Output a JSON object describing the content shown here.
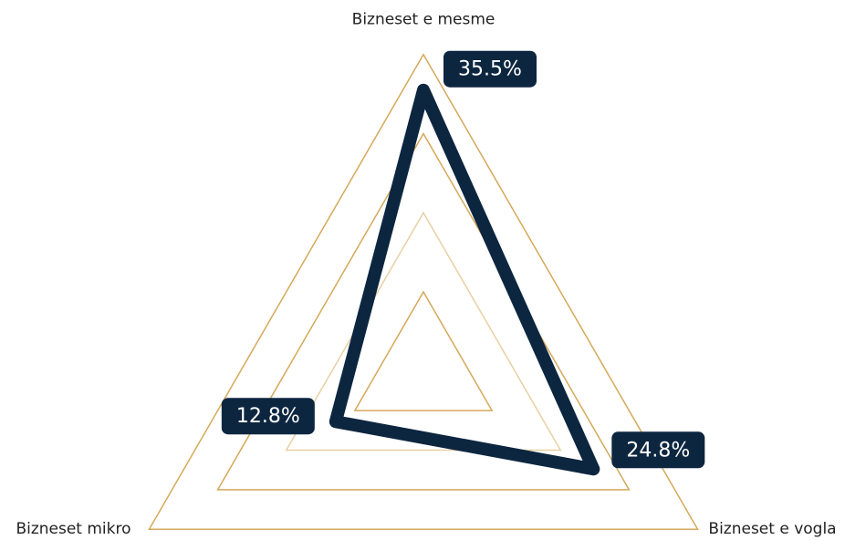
{
  "chart_data": {
    "type": "radar",
    "categories": [
      "Bizneset e mesme",
      "Bizneset e vogla",
      "Bizneset mikro"
    ],
    "values": [
      35.5,
      24.8,
      12.8
    ],
    "value_labels": [
      "35.5%",
      "24.8%",
      "12.8%"
    ],
    "color": "#0d2640",
    "grid_color": "#d4a95a",
    "rlim": [
      0,
      40
    ],
    "rticks": [
      10,
      20,
      30,
      40
    ]
  }
}
